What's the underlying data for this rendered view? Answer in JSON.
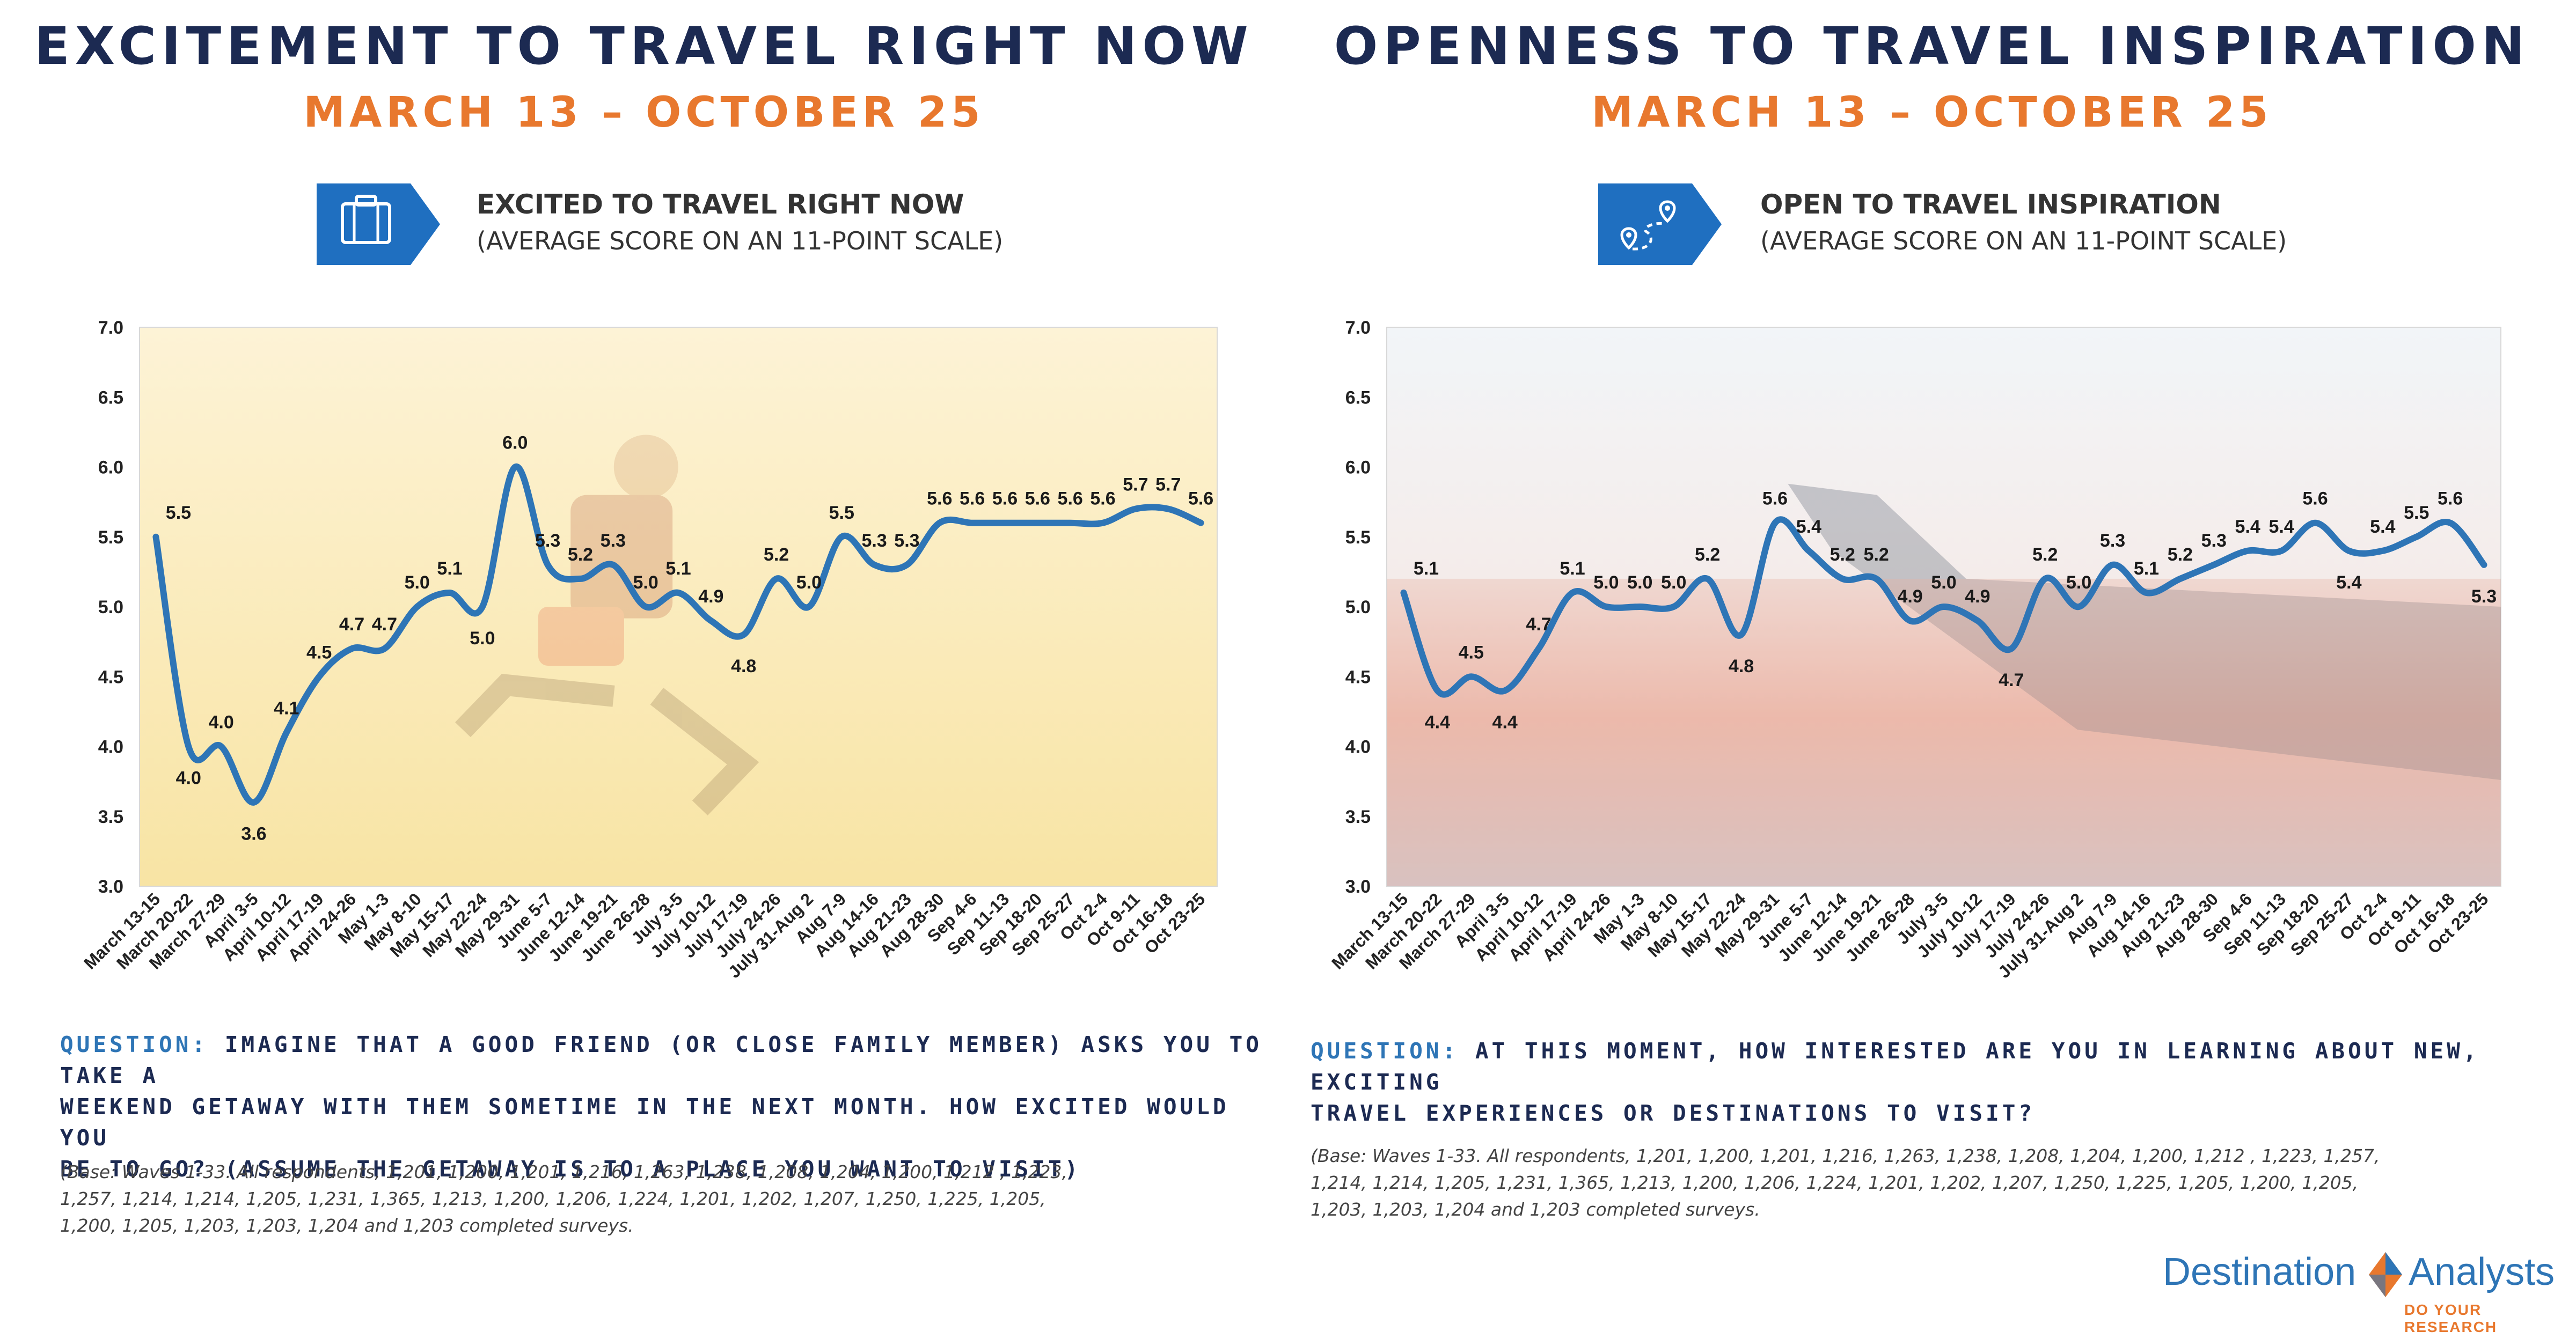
{
  "left": {
    "title": "EXCITEMENT TO TRAVEL RIGHT NOW",
    "subtitle": "MARCH 13 – OCTOBER 25",
    "badge_title": "EXCITED TO TRAVEL RIGHT NOW",
    "badge_sub": "(AVERAGE SCORE ON AN 11-POINT SCALE)",
    "badge_icon": "suitcase-icon",
    "question_label": "QUESTION:",
    "question_lines": [
      "IMAGINE THAT A GOOD FRIEND (OR CLOSE FAMILY MEMBER) ASKS YOU TO TAKE A",
      "WEEKEND GETAWAY WITH THEM SOMETIME IN THE NEXT MONTH. HOW EXCITED WOULD YOU",
      "BE TO GO? (ASSUME THE GETAWAY IS TO A PLACE YOU WANT TO VISIT)"
    ],
    "base_lines": [
      "(Base: Waves 1-33.  All respondents, 1,201, 1,200, 1,201, 1,216, 1,263, 1,238, 1,208, 1,204, 1,200, 1,212 , 1,223,",
      "1,257, 1,214, 1,214, 1,205, 1,231, 1,365, 1,213, 1,200, 1,206, 1,224, 1,201, 1,202, 1,207, 1,250, 1,225, 1,205,",
      "1,200, 1,205, 1,203, 1,203, 1,204 and 1,203 completed surveys."
    ]
  },
  "right": {
    "title": "OPENNESS TO TRAVEL INSPIRATION",
    "subtitle": "MARCH 13 – OCTOBER 25",
    "badge_title": "OPEN TO TRAVEL INSPIRATION",
    "badge_sub": "(AVERAGE SCORE ON AN 11-POINT SCALE)",
    "badge_icon": "route-map-icon",
    "question_label": "QUESTION:",
    "question_lines": [
      "AT THIS MOMENT, HOW INTERESTED ARE YOU IN LEARNING ABOUT NEW, EXCITING",
      "TRAVEL EXPERIENCES OR DESTINATIONS TO VISIT?"
    ],
    "base_lines": [
      "(Base: Waves 1-33.  All respondents, 1,201, 1,200, 1,201, 1,216, 1,263, 1,238, 1,208, 1,204, 1,200, 1,212 , 1,223, 1,257,",
      "1,214, 1,214, 1,205, 1,231, 1,365, 1,213, 1,200, 1,206, 1,224, 1,201, 1,202, 1,207, 1,250, 1,225, 1,205, 1,200, 1,205,",
      "1,203, 1,203, 1,204 and 1,203 completed surveys."
    ]
  },
  "logo": {
    "word1": "Destination",
    "word2": "Analysts",
    "tagline": "DO YOUR RESEARCH"
  },
  "colors": {
    "navy": "#1c2a52",
    "orange": "#e8782e",
    "line": "#2e75b6",
    "badge": "#1f6fc0"
  },
  "chart_data": [
    {
      "type": "line",
      "categories": [
        "March 13-15",
        "March 20-22",
        "March 27-29",
        "April 3-5",
        "April 10-12",
        "April 17-19",
        "April 24-26",
        "May 1-3",
        "May 8-10",
        "May 15-17",
        "May 22-24",
        "May 29-31",
        "June 5-7",
        "June 12-14",
        "June 19-21",
        "June 26-28",
        "July 3-5",
        "July 10-12",
        "July 17-19",
        "July 24-26",
        "July 31-Aug 2",
        "Aug 7-9",
        "Aug 14-16",
        "Aug 21-23",
        "Aug 28-30",
        "Sep 4-6",
        "Sep 11-13",
        "Sep 18-20",
        "Sep 25-27",
        "Oct 2-4",
        "Oct 9-11",
        "Oct 16-18",
        "Oct 23-25"
      ],
      "values": [
        5.5,
        4.0,
        4.0,
        3.6,
        4.1,
        4.5,
        4.7,
        4.7,
        5.0,
        5.1,
        5.0,
        6.0,
        5.3,
        5.2,
        5.3,
        5.0,
        5.1,
        4.9,
        4.8,
        5.2,
        5.0,
        5.5,
        5.3,
        5.3,
        5.6,
        5.6,
        5.6,
        5.6,
        5.6,
        5.6,
        5.7,
        5.7,
        5.6
      ],
      "label_pos": [
        "above",
        "below",
        "above",
        "below",
        "above",
        "above",
        "above",
        "above",
        "above",
        "above",
        "below",
        "above",
        "above",
        "above",
        "above",
        "above",
        "above",
        "above",
        "below",
        "above",
        "above",
        "above",
        "above",
        "above",
        "above",
        "above",
        "above",
        "above",
        "above",
        "above",
        "above",
        "above",
        "above"
      ],
      "ylim": [
        3.0,
        7.0
      ],
      "yticks": [
        3.0,
        3.5,
        4.0,
        4.5,
        5.0,
        5.5,
        6.0,
        6.5,
        7.0
      ],
      "background": "yellow"
    },
    {
      "type": "line",
      "categories": [
        "March 13-15",
        "March 20-22",
        "March 27-29",
        "April 3-5",
        "April 10-12",
        "April 17-19",
        "April 24-26",
        "May 1-3",
        "May 8-10",
        "May 15-17",
        "May 22-24",
        "May 29-31",
        "June 5-7",
        "June 12-14",
        "June 19-21",
        "June 26-28",
        "July 3-5",
        "July 10-12",
        "July 17-19",
        "July 24-26",
        "July 31-Aug 2",
        "Aug 7-9",
        "Aug 14-16",
        "Aug 21-23",
        "Aug 28-30",
        "Sep 4-6",
        "Sep 11-13",
        "Sep 18-20",
        "Sep 25-27",
        "Oct 2-4",
        "Oct 9-11",
        "Oct 16-18",
        "Oct 23-25"
      ],
      "values": [
        5.1,
        4.4,
        4.5,
        4.4,
        4.7,
        5.1,
        5.0,
        5.0,
        5.0,
        5.2,
        4.8,
        5.6,
        5.4,
        5.2,
        5.2,
        4.9,
        5.0,
        4.9,
        4.7,
        5.2,
        5.0,
        5.3,
        5.1,
        5.2,
        5.3,
        5.4,
        5.4,
        5.6,
        5.4,
        5.4,
        5.5,
        5.6,
        5.3
      ],
      "label_pos": [
        "above",
        "below",
        "above",
        "below",
        "above",
        "above",
        "above",
        "above",
        "above",
        "above",
        "below",
        "above",
        "above",
        "above",
        "above",
        "above",
        "above",
        "above",
        "below",
        "above",
        "above",
        "above",
        "above",
        "above",
        "above",
        "above",
        "above",
        "above",
        "below",
        "above",
        "above",
        "above",
        "below"
      ],
      "ylim": [
        3.0,
        7.0
      ],
      "yticks": [
        3.0,
        3.5,
        4.0,
        4.5,
        5.0,
        5.5,
        6.0,
        6.5,
        7.0
      ],
      "background": "sky"
    }
  ]
}
